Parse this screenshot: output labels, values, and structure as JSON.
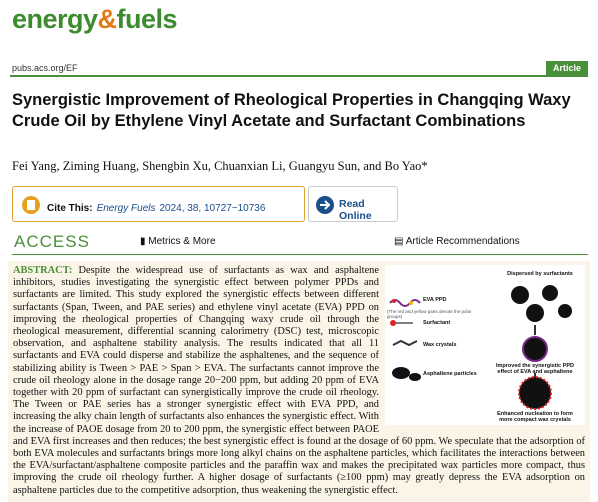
{
  "header": {
    "logo": [
      "energy",
      "&",
      "fuels"
    ],
    "url": "pubs.acs.org/EF",
    "badge": "Article"
  },
  "title": "Synergistic Improvement of Rheological Properties in Changqing Waxy Crude Oil by Ethylene Vinyl Acetate and Surfactant Combinations",
  "authors": "Fei Yang, Ziming Huang, Shengbin Xu, Chuanxian Li, Guangyu Sun, and Bo Yao*",
  "cite": {
    "label": "Cite This:",
    "journal": "Energy Fuels",
    "ref": "2024, 38, 10727−10736",
    "read": "Read Online"
  },
  "access": {
    "label": "ACCESS",
    "metrics": "Metrics & More",
    "recs": "Article Recommendations"
  },
  "abstract": {
    "label": "ABSTRACT:",
    "text": "Despite the widespread use of surfactants as wax and asphaltene inhibitors, studies investigating the synergistic effect between polymer PPDs and surfactants are limited. This study explored the synergistic effects between different surfactants (Span, Tween, and PAE series) and ethylene vinyl acetate (EVA) PPD on improving the rheological properties of Changqing waxy crude oil through the rheological measurement, differential scanning calorimetry (DSC) test, microscopic observation, and asphaltene stability analysis. The results indicated that all 11 surfactants and EVA could disperse and stabilize the asphaltenes, and the sequence of stabilizing ability is Tween > PAE > Span > EVA. The surfactants cannot improve the crude oil rheology alone in the dosage range 20−200 ppm, but adding 20 ppm of EVA together with 20 ppm of surfactant can synergistically improve the crude oil rheology. The Tween or PAE series has a stronger synergistic effect with EVA PPD, and increasing the alky chain length of surfactants also enhances the synergistic effect. With the increase of PAOE dosage from 20 to 200 ppm, the synergistic effect between PAOE and EVA first increases and then reduces; the best synergistic effect is found at the dosage of 60 ppm. We speculate that the adsorption of both EVA molecules and surfactants brings more long alkyl chains on the asphaltene particles, which facilitates the interactions between the EVA/surfactant/asphaltene composite particles and the paraffin wax and makes the precipitated wax particles more compact, thus improving the crude oil rheology further. A higher dosage of surfactants (≥100 ppm) may greatly depress the EVA adsorption on asphaltene particles due to the competitive adsorption, thus weakening the synergistic effect."
  },
  "figure": {
    "dispersed": "Dispersed by surfactants",
    "eva": "EVA PPD",
    "eva_note": "(The red and yellow parts denote the polar groups)",
    "surfactant": "Surfactant",
    "wax": "Wax crystals",
    "asphaltene": "Asphaltene particles",
    "improved": "Improved the synergistic PPD effect of EVA and asphaltene",
    "enhanced": "Enhanced nucleation to form more compact wax crystals"
  }
}
